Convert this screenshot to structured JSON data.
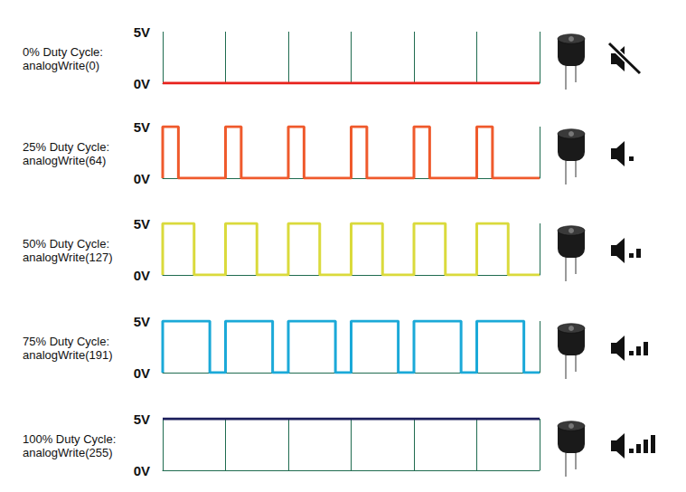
{
  "chart_data": [
    {
      "type": "line",
      "title": "0% Duty Cycle:",
      "subtitle": "analogWrite(0)",
      "color": "#e8221c",
      "x": [
        0,
        6
      ],
      "values": [
        0,
        0
      ],
      "xlim": [
        0,
        6
      ],
      "xticks": [
        0,
        1,
        2,
        3,
        4,
        5,
        6
      ],
      "ylim": [
        0,
        5
      ],
      "yticks": [
        {
          "value": 0,
          "label": "0V"
        },
        {
          "value": 5,
          "label": "5V"
        }
      ],
      "grid": "x",
      "tick_labels": "y"
    },
    {
      "type": "line",
      "title": "25% Duty Cycle:",
      "subtitle": "analogWrite(64)",
      "color": "#ef5a2c",
      "x": [
        0,
        0,
        0.25,
        0.25,
        1,
        1,
        1.25,
        1.25,
        2,
        2,
        2.25,
        2.25,
        3,
        3,
        3.25,
        3.25,
        4,
        4,
        4.25,
        4.25,
        5,
        5,
        5.25,
        5.25,
        6
      ],
      "values": [
        0,
        5,
        5,
        0,
        0,
        5,
        5,
        0,
        0,
        5,
        5,
        0,
        0,
        5,
        5,
        0,
        0,
        5,
        5,
        0,
        0,
        5,
        5,
        0,
        0
      ],
      "xlim": [
        0,
        6
      ],
      "xticks": [
        0,
        1,
        2,
        3,
        4,
        5,
        6
      ],
      "ylim": [
        0,
        5
      ],
      "yticks": [
        {
          "value": 0,
          "label": "0V"
        },
        {
          "value": 5,
          "label": "5V"
        }
      ],
      "grid": "x",
      "tick_labels": "y"
    },
    {
      "type": "line",
      "title": "50% Duty Cycle:",
      "subtitle": "analogWrite(127)",
      "color": "#dada3c",
      "x": [
        0,
        0,
        0.5,
        0.5,
        1,
        1,
        1.5,
        1.5,
        2,
        2,
        2.5,
        2.5,
        3,
        3,
        3.5,
        3.5,
        4,
        4,
        4.5,
        4.5,
        5,
        5,
        5.5,
        5.5,
        6
      ],
      "values": [
        0,
        5,
        5,
        0,
        0,
        5,
        5,
        0,
        0,
        5,
        5,
        0,
        0,
        5,
        5,
        0,
        0,
        5,
        5,
        0,
        0,
        5,
        5,
        0,
        0
      ],
      "xlim": [
        0,
        6
      ],
      "xticks": [
        0,
        1,
        2,
        3,
        4,
        5,
        6
      ],
      "ylim": [
        0,
        5
      ],
      "yticks": [
        {
          "value": 0,
          "label": "0V"
        },
        {
          "value": 5,
          "label": "5V"
        }
      ],
      "grid": "x",
      "tick_labels": "y"
    },
    {
      "type": "line",
      "title": "75% Duty Cycle:",
      "subtitle": "analogWrite(191)",
      "color": "#1ba9d8",
      "x": [
        0,
        0,
        0.75,
        0.75,
        1,
        1,
        1.75,
        1.75,
        2,
        2,
        2.75,
        2.75,
        3,
        3,
        3.75,
        3.75,
        4,
        4,
        4.75,
        4.75,
        5,
        5,
        5.75,
        5.75,
        6
      ],
      "values": [
        0,
        5,
        5,
        0,
        0,
        5,
        5,
        0,
        0,
        5,
        5,
        0,
        0,
        5,
        5,
        0,
        0,
        5,
        5,
        0,
        0,
        5,
        5,
        0,
        0
      ],
      "xlim": [
        0,
        6
      ],
      "xticks": [
        0,
        1,
        2,
        3,
        4,
        5,
        6
      ],
      "ylim": [
        0,
        5
      ],
      "yticks": [
        {
          "value": 0,
          "label": "0V"
        },
        {
          "value": 5,
          "label": "5V"
        }
      ],
      "grid": "x",
      "tick_labels": "y"
    },
    {
      "type": "line",
      "title": "100% Duty Cycle:",
      "subtitle": "analogWrite(255)",
      "color": "#1c1f5c",
      "x": [
        0,
        6
      ],
      "values": [
        5,
        5
      ],
      "xlim": [
        0,
        6
      ],
      "xticks": [
        0,
        1,
        2,
        3,
        4,
        5,
        6
      ],
      "ylim": [
        0,
        5
      ],
      "yticks": [
        {
          "value": 0,
          "label": "0V"
        },
        {
          "value": 5,
          "label": "5V"
        }
      ],
      "grid": "x",
      "tick_labels": "y"
    }
  ]
}
